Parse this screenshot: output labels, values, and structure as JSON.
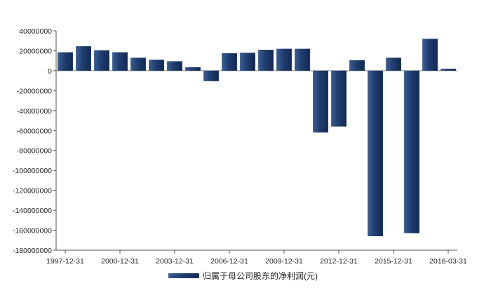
{
  "chart_data": {
    "type": "bar",
    "title": "",
    "xlabel": "",
    "ylabel": "",
    "ylim": [
      -180000000,
      40000000
    ],
    "yticks": [
      40000000,
      20000000,
      0,
      -20000000,
      -40000000,
      -60000000,
      -80000000,
      -100000000,
      -120000000,
      -140000000,
      -160000000,
      -180000000
    ],
    "ytick_labels": [
      "40000000",
      "20000000",
      "0",
      "-20000000",
      "-40000000",
      "-60000000",
      "-80000000",
      "-100000000",
      "-120000000",
      "-140000000",
      "-160000000",
      "-180000000"
    ],
    "xtick_labels": [
      "1997-12-31",
      "2000-12-31",
      "2003-12-31",
      "2006-12-31",
      "2009-12-31",
      "2012-12-31",
      "2015-12-31",
      "2018-03-31"
    ],
    "grid": false,
    "legend_position": "bottom-center",
    "categories": [
      "1997-12-31",
      "1998-12-31",
      "1999-12-31",
      "2000-12-31",
      "2001-12-31",
      "2002-12-31",
      "2003-12-31",
      "2004-12-31",
      "2005-12-31",
      "2006-12-31",
      "2007-12-31",
      "2008-12-31",
      "2009-12-31",
      "2010-12-31",
      "2011-12-31",
      "2012-12-31",
      "2013-12-31",
      "2014-12-31",
      "2015-12-31",
      "2016-12-31",
      "2017-12-31",
      "2018-03-31"
    ],
    "series": [
      {
        "name": "归属于母公司股东的净利润(元)",
        "color": "#1f3d6e",
        "values": [
          18500000,
          24500000,
          20500000,
          18500000,
          13000000,
          11000000,
          9500000,
          3500000,
          -10500000,
          17500000,
          18000000,
          21000000,
          22000000,
          22000000,
          -62000000,
          -56000000,
          10500000,
          -166000000,
          13000000,
          -163000000,
          32000000,
          2000000
        ]
      }
    ]
  }
}
